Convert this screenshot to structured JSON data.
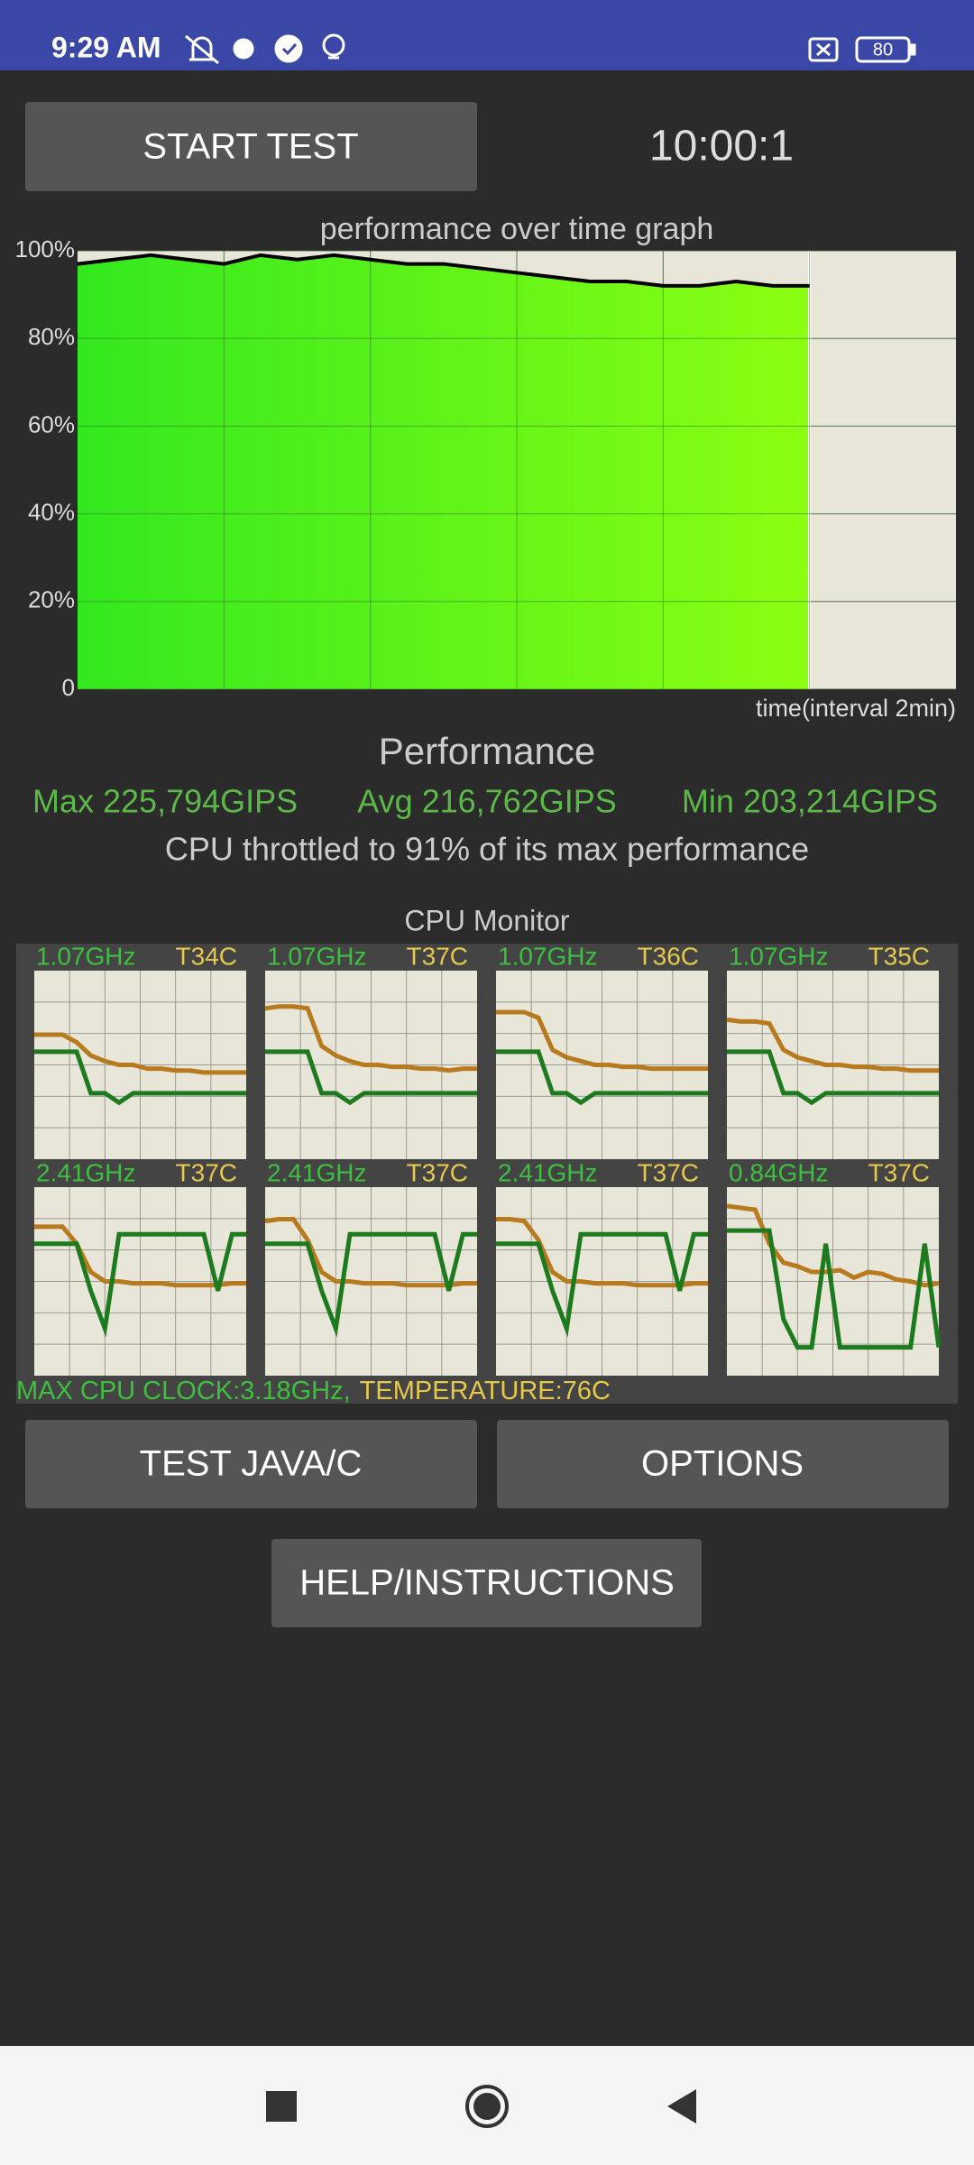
{
  "status_bar": {
    "time": "9:29 AM",
    "battery": "80"
  },
  "controls": {
    "start_button": "START TEST",
    "timer": "10:00:1"
  },
  "chart_data": {
    "type": "line",
    "title": "performance over time graph",
    "x_label": "time(interval 2min)",
    "xlim": [
      0,
      12
    ],
    "ylim": [
      0,
      100
    ],
    "yticks": [
      {
        "value": 0,
        "label": "0"
      },
      {
        "value": 20,
        "label": "20%"
      },
      {
        "value": 40,
        "label": "40%"
      },
      {
        "value": 60,
        "label": "60%"
      },
      {
        "value": 80,
        "label": "80%"
      },
      {
        "value": 100,
        "label": "100%"
      }
    ],
    "grid": true,
    "area_color": "#5cf21e",
    "x": [
      0,
      0.5,
      1,
      1.5,
      2,
      2.5,
      3,
      3.5,
      4,
      4.5,
      5,
      5.5,
      6,
      6.5,
      7,
      7.5,
      8,
      8.5,
      9,
      9.5,
      10
    ],
    "series": [
      {
        "color": "#000000",
        "values": [
          97,
          98,
          99,
          98,
          97,
          99,
          98,
          99,
          98,
          97,
          97,
          96,
          95,
          94,
          93,
          93,
          92,
          92,
          93,
          92,
          92
        ]
      }
    ]
  },
  "performance": {
    "title": "Performance",
    "max": "Max 225,794GIPS",
    "avg": "Avg 216,762GIPS",
    "min": "Min 203,214GIPS",
    "note": "CPU throttled to 91% of its max performance"
  },
  "cpu_monitor": {
    "title": "CPU Monitor",
    "ylim": [
      0,
      100
    ],
    "freq_color": "#1e7a1e",
    "temp_color": "#b87a1e",
    "cores": [
      {
        "freq": "1.07GHz",
        "temp": "T34C",
        "temp_values": [
          66,
          66,
          66,
          62,
          55,
          52,
          50,
          50,
          48,
          48,
          47,
          47,
          46,
          46,
          46,
          46
        ],
        "freq_values": [
          57,
          57,
          57,
          57,
          35,
          35,
          30,
          35,
          35,
          35,
          35,
          35,
          35,
          35,
          35,
          35
        ]
      },
      {
        "freq": "1.07GHz",
        "temp": "T37C",
        "temp_values": [
          80,
          81,
          81,
          80,
          60,
          55,
          52,
          50,
          50,
          49,
          49,
          48,
          48,
          47,
          48,
          48
        ],
        "freq_values": [
          57,
          57,
          57,
          57,
          35,
          35,
          30,
          35,
          35,
          35,
          35,
          35,
          35,
          35,
          35,
          35
        ]
      },
      {
        "freq": "1.07GHz",
        "temp": "T36C",
        "temp_values": [
          78,
          78,
          78,
          75,
          58,
          54,
          52,
          50,
          50,
          49,
          49,
          48,
          48,
          48,
          48,
          48
        ],
        "freq_values": [
          57,
          57,
          57,
          57,
          35,
          35,
          30,
          35,
          35,
          35,
          35,
          35,
          35,
          35,
          35,
          35
        ]
      },
      {
        "freq": "1.07GHz",
        "temp": "T35C",
        "temp_values": [
          74,
          73,
          73,
          72,
          58,
          54,
          52,
          50,
          50,
          49,
          49,
          48,
          48,
          47,
          47,
          47
        ],
        "freq_values": [
          57,
          57,
          57,
          57,
          35,
          35,
          30,
          35,
          35,
          35,
          35,
          35,
          35,
          35,
          35,
          35
        ]
      },
      {
        "freq": "2.41GHz",
        "temp": "T37C",
        "temp_values": [
          79,
          79,
          79,
          70,
          55,
          50,
          50,
          49,
          49,
          49,
          48,
          48,
          48,
          48,
          49,
          49
        ],
        "freq_values": [
          70,
          70,
          70,
          70,
          45,
          25,
          75,
          75,
          75,
          75,
          75,
          75,
          75,
          45,
          75,
          75
        ]
      },
      {
        "freq": "2.41GHz",
        "temp": "T37C",
        "temp_values": [
          82,
          83,
          83,
          72,
          55,
          50,
          50,
          49,
          49,
          49,
          48,
          48,
          48,
          48,
          49,
          49
        ],
        "freq_values": [
          70,
          70,
          70,
          70,
          45,
          25,
          75,
          75,
          75,
          75,
          75,
          75,
          75,
          45,
          75,
          75
        ]
      },
      {
        "freq": "2.41GHz",
        "temp": "T37C",
        "temp_values": [
          83,
          83,
          82,
          72,
          55,
          50,
          50,
          49,
          49,
          49,
          48,
          48,
          48,
          48,
          49,
          49
        ],
        "freq_values": [
          70,
          70,
          70,
          70,
          45,
          25,
          75,
          75,
          75,
          75,
          75,
          75,
          75,
          45,
          75,
          75
        ]
      },
      {
        "freq": "0.84GHz",
        "temp": "T37C",
        "temp_values": [
          90,
          89,
          88,
          70,
          60,
          58,
          55,
          55,
          56,
          52,
          55,
          54,
          51,
          50,
          48,
          49
        ],
        "freq_values": [
          77,
          77,
          77,
          77,
          30,
          15,
          15,
          70,
          15,
          15,
          15,
          15,
          15,
          15,
          70,
          15
        ]
      }
    ],
    "summary_clock": "MAX CPU CLOCK:3.18GHz,",
    "summary_temp": "TEMPERATURE:76C"
  },
  "buttons": {
    "test": "TEST JAVA/C",
    "options": "OPTIONS",
    "help": "HELP/INSTRUCTIONS"
  }
}
